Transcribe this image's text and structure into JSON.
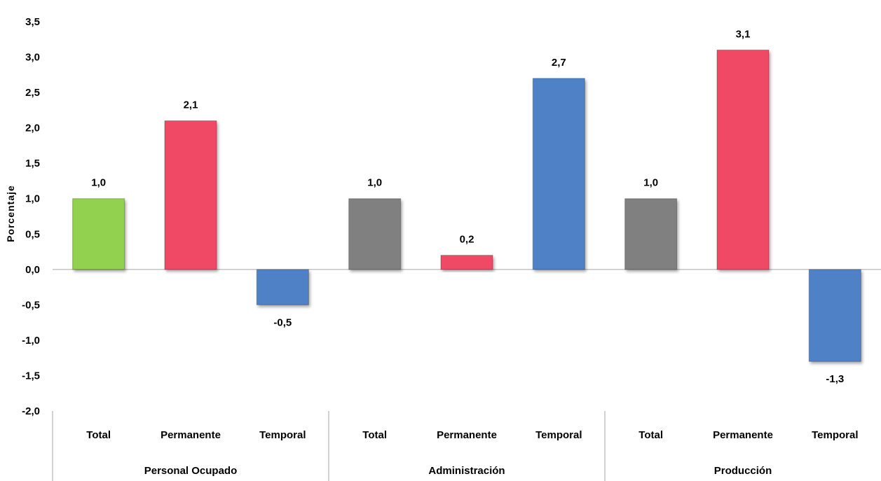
{
  "chart_data": {
    "type": "bar",
    "ylabel": "Porcentaje",
    "ylim": [
      -2.0,
      3.5
    ],
    "yticks": [
      "3,5",
      "3,0",
      "2,5",
      "2,0",
      "1,5",
      "1,0",
      "0,5",
      "0,0",
      "-0,5",
      "-1,0",
      "-1,5",
      "-2,0"
    ],
    "ytick_values": [
      3.5,
      3.0,
      2.5,
      2.0,
      1.5,
      1.0,
      0.5,
      0.0,
      -0.5,
      -1.0,
      -1.5,
      -2.0
    ],
    "grid": false,
    "groups": [
      {
        "name": "Personal Ocupado",
        "bars": [
          {
            "category": "Total",
            "value": 1.0,
            "label": "1,0",
            "color": "#92d050"
          },
          {
            "category": "Permanente",
            "value": 2.1,
            "label": "2,1",
            "color": "#f04a66"
          },
          {
            "category": "Temporal",
            "value": -0.5,
            "label": "-0,5",
            "color": "#4f81c6"
          }
        ]
      },
      {
        "name": "Administración",
        "bars": [
          {
            "category": "Total",
            "value": 1.0,
            "label": "1,0",
            "color": "#808080"
          },
          {
            "category": "Permanente",
            "value": 0.2,
            "label": "0,2",
            "color": "#f04a66"
          },
          {
            "category": "Temporal",
            "value": 2.7,
            "label": "2,7",
            "color": "#4f81c6"
          }
        ]
      },
      {
        "name": "Producción",
        "bars": [
          {
            "category": "Total",
            "value": 1.0,
            "label": "1,0",
            "color": "#808080"
          },
          {
            "category": "Permanente",
            "value": 3.1,
            "label": "3,1",
            "color": "#f04a66"
          },
          {
            "category": "Temporal",
            "value": -1.3,
            "label": "-1,3",
            "color": "#4f81c6"
          }
        ]
      }
    ]
  }
}
